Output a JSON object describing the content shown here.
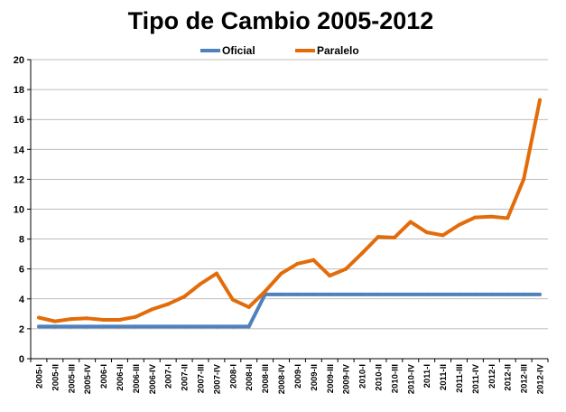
{
  "chart_data": {
    "type": "line",
    "title": "Tipo de Cambio 2005-2012",
    "xlabel": "",
    "ylabel": "",
    "ylim": [
      0,
      20
    ],
    "yticks": [
      0,
      2,
      4,
      6,
      8,
      10,
      12,
      14,
      16,
      18,
      20
    ],
    "grid": true,
    "legend_position": "top-center",
    "categories": [
      "2005-I",
      "2005-II",
      "2005-III",
      "2005-IV",
      "2006-I",
      "2006-II",
      "2006-III",
      "2006-IV",
      "2007-I",
      "2007-II",
      "2007-III",
      "2007-IV",
      "2008-I",
      "2008-II",
      "2008-III",
      "2008-IV",
      "2009-I",
      "2009-II",
      "2009-III",
      "2009-IV",
      "2010-I",
      "2010-II",
      "2010-III",
      "2010-IV",
      "2011-I",
      "2011-II",
      "2011-III",
      "2011-IV",
      "2012-I",
      "2012-II",
      "2012-III",
      "2012-IV"
    ],
    "series": [
      {
        "name": "Oficial",
        "color": "#4f81bd",
        "values": [
          2.15,
          2.15,
          2.15,
          2.15,
          2.15,
          2.15,
          2.15,
          2.15,
          2.15,
          2.15,
          2.15,
          2.15,
          2.15,
          2.15,
          4.3,
          4.3,
          4.3,
          4.3,
          4.3,
          4.3,
          4.3,
          4.3,
          4.3,
          4.3,
          4.3,
          4.3,
          4.3,
          4.3,
          4.3,
          4.3,
          4.3,
          4.3
        ]
      },
      {
        "name": "Paralelo",
        "color": "#e36c0a",
        "values": [
          2.75,
          2.5,
          2.65,
          2.7,
          2.6,
          2.6,
          2.8,
          3.3,
          3.65,
          4.15,
          5.0,
          5.7,
          3.95,
          3.45,
          4.5,
          5.7,
          6.35,
          6.6,
          5.55,
          6.0,
          7.05,
          8.15,
          8.1,
          9.15,
          8.45,
          8.25,
          8.95,
          9.45,
          9.5,
          9.4,
          12.0,
          17.3
        ]
      }
    ]
  }
}
